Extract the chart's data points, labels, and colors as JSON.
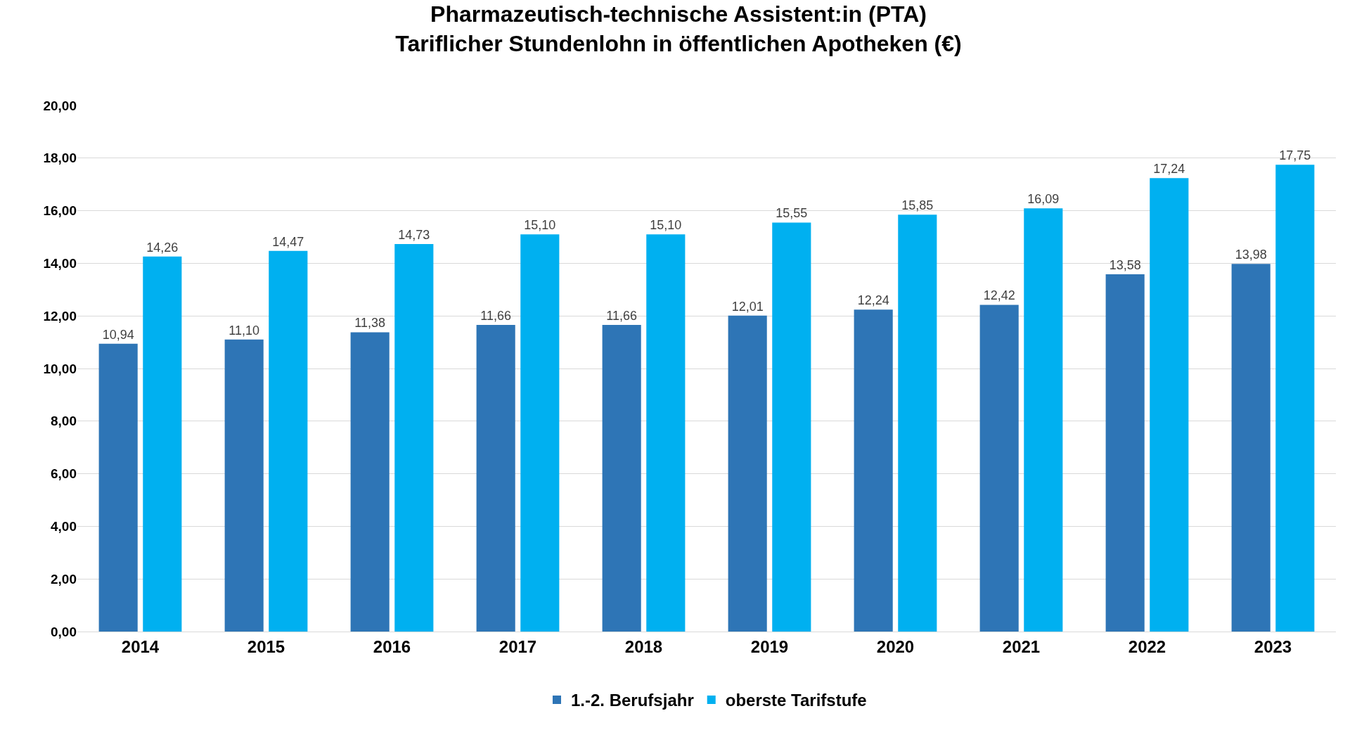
{
  "chart_data": {
    "type": "bar",
    "title": "Pharmazeutisch-technische Assistent:in (PTA)\nTariflicher Stundenlohn in öffentlichen Apotheken (€)",
    "categories": [
      "2014",
      "2015",
      "2016",
      "2017",
      "2018",
      "2019",
      "2020",
      "2021",
      "2022",
      "2023"
    ],
    "series": [
      {
        "name": "1.-2. Berufsjahr",
        "color": "#2e75b6",
        "values": [
          10.94,
          11.1,
          11.38,
          11.66,
          11.66,
          12.01,
          12.24,
          12.42,
          13.58,
          13.98
        ],
        "value_labels": [
          "10,94",
          "11,10",
          "11,38",
          "11,66",
          "11,66",
          "12,01",
          "12,24",
          "12,42",
          "13,58",
          "13,98"
        ]
      },
      {
        "name": "oberste Tarifstufe",
        "color": "#00b0f0",
        "values": [
          14.26,
          14.47,
          14.73,
          15.1,
          15.1,
          15.55,
          15.85,
          16.09,
          17.24,
          17.75
        ],
        "value_labels": [
          "14,26",
          "14,47",
          "14,73",
          "15,10",
          "15,10",
          "15,55",
          "15,85",
          "16,09",
          "17,24",
          "17,75"
        ]
      }
    ],
    "ylim": [
      0,
      20
    ],
    "yticks": [
      {
        "value": 0,
        "label": "0,00"
      },
      {
        "value": 2,
        "label": "2,00"
      },
      {
        "value": 4,
        "label": "4,00"
      },
      {
        "value": 6,
        "label": "6,00"
      },
      {
        "value": 8,
        "label": "8,00"
      },
      {
        "value": 10,
        "label": "10,00"
      },
      {
        "value": 12,
        "label": "12,00"
      },
      {
        "value": 14,
        "label": "14,00"
      },
      {
        "value": 16,
        "label": "16,00"
      },
      {
        "value": 18,
        "label": "18,00"
      },
      {
        "value": 20,
        "label": "20,00"
      }
    ],
    "grid": "y",
    "legend": "bottom"
  }
}
